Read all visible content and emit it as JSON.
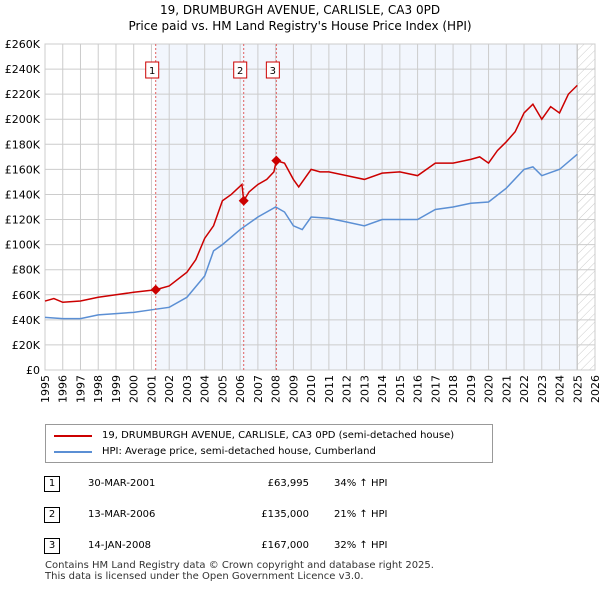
{
  "title_line1": "19, DRUMBURGH AVENUE, CARLISLE, CA3 0PD",
  "title_line2": "Price paid vs. HM Land Registry's House Price Index (HPI)",
  "chart_data": {
    "type": "line",
    "xlim": [
      1995,
      2026
    ],
    "ylim": [
      0,
      260000
    ],
    "x_ticks": [
      "1995",
      "1996",
      "1997",
      "1998",
      "1999",
      "2000",
      "2001",
      "2002",
      "2003",
      "2004",
      "2005",
      "2006",
      "2007",
      "2008",
      "2009",
      "2010",
      "2011",
      "2012",
      "2013",
      "2014",
      "2015",
      "2016",
      "2017",
      "2018",
      "2019",
      "2020",
      "2021",
      "2022",
      "2023",
      "2024",
      "2025",
      "2026"
    ],
    "y_ticks": [
      "£0",
      "£20K",
      "£40K",
      "£60K",
      "£80K",
      "£100K",
      "£120K",
      "£140K",
      "£160K",
      "£180K",
      "£200K",
      "£220K",
      "£240K",
      "£260K"
    ],
    "grid": true,
    "series": [
      {
        "name": "19, DRUMBURGH AVENUE, CARLISLE, CA3 0PD (semi-detached house)",
        "color": "#cc0000",
        "points": [
          [
            1995,
            55000
          ],
          [
            1995.5,
            57000
          ],
          [
            1996,
            54000
          ],
          [
            1997,
            55000
          ],
          [
            1998,
            58000
          ],
          [
            1999,
            60000
          ],
          [
            2000,
            62000
          ],
          [
            2001.24,
            64000
          ],
          [
            2002,
            67000
          ],
          [
            2003,
            78000
          ],
          [
            2003.5,
            88000
          ],
          [
            2004,
            105000
          ],
          [
            2004.5,
            115000
          ],
          [
            2005,
            135000
          ],
          [
            2005.5,
            140000
          ],
          [
            2006.1,
            148000
          ],
          [
            2006.2,
            135000
          ],
          [
            2006.5,
            142000
          ],
          [
            2007,
            148000
          ],
          [
            2007.5,
            152000
          ],
          [
            2007.9,
            158000
          ],
          [
            2008.04,
            167000
          ],
          [
            2008.5,
            165000
          ],
          [
            2009,
            152000
          ],
          [
            2009.3,
            146000
          ],
          [
            2010,
            160000
          ],
          [
            2010.5,
            158000
          ],
          [
            2011,
            158000
          ],
          [
            2012,
            155000
          ],
          [
            2013,
            152000
          ],
          [
            2014,
            157000
          ],
          [
            2015,
            158000
          ],
          [
            2016,
            155000
          ],
          [
            2017,
            165000
          ],
          [
            2018,
            165000
          ],
          [
            2019,
            168000
          ],
          [
            2019.5,
            170000
          ],
          [
            2020,
            165000
          ],
          [
            2020.5,
            175000
          ],
          [
            2021,
            182000
          ],
          [
            2021.5,
            190000
          ],
          [
            2022,
            205000
          ],
          [
            2022.5,
            212000
          ],
          [
            2023,
            200000
          ],
          [
            2023.5,
            210000
          ],
          [
            2024,
            205000
          ],
          [
            2024.5,
            220000
          ],
          [
            2025,
            227000
          ]
        ]
      },
      {
        "name": "HPI: Average price, semi-detached house, Cumberland",
        "color": "#5b8fd4",
        "points": [
          [
            1995,
            42000
          ],
          [
            1996,
            41000
          ],
          [
            1997,
            41000
          ],
          [
            1998,
            44000
          ],
          [
            1999,
            45000
          ],
          [
            2000,
            46000
          ],
          [
            2001,
            48000
          ],
          [
            2002,
            50000
          ],
          [
            2003,
            58000
          ],
          [
            2004,
            75000
          ],
          [
            2004.5,
            95000
          ],
          [
            2005,
            100000
          ],
          [
            2006,
            112000
          ],
          [
            2007,
            122000
          ],
          [
            2008,
            130000
          ],
          [
            2008.5,
            126000
          ],
          [
            2009,
            115000
          ],
          [
            2009.5,
            112000
          ],
          [
            2010,
            122000
          ],
          [
            2011,
            121000
          ],
          [
            2012,
            118000
          ],
          [
            2013,
            115000
          ],
          [
            2014,
            120000
          ],
          [
            2015,
            120000
          ],
          [
            2016,
            120000
          ],
          [
            2017,
            128000
          ],
          [
            2018,
            130000
          ],
          [
            2019,
            133000
          ],
          [
            2020,
            134000
          ],
          [
            2021,
            145000
          ],
          [
            2022,
            160000
          ],
          [
            2022.5,
            162000
          ],
          [
            2023,
            155000
          ],
          [
            2024,
            160000
          ],
          [
            2025,
            172000
          ]
        ]
      }
    ],
    "sales": [
      {
        "label": "1",
        "x": 2001.24,
        "y": 63995
      },
      {
        "label": "2",
        "x": 2006.2,
        "y": 135000
      },
      {
        "label": "3",
        "x": 2008.04,
        "y": 167000
      }
    ],
    "shaded_from": 2001.24,
    "hatched_from": 2025.0
  },
  "legend": {
    "series1": "19, DRUMBURGH AVENUE, CARLISLE, CA3 0PD (semi-detached house)",
    "series2": "HPI: Average price, semi-detached house, Cumberland"
  },
  "transactions": [
    {
      "num": "1",
      "date": "30-MAR-2001",
      "price": "£63,995",
      "hpi": "34% ↑ HPI"
    },
    {
      "num": "2",
      "date": "13-MAR-2006",
      "price": "£135,000",
      "hpi": "21% ↑ HPI"
    },
    {
      "num": "3",
      "date": "14-JAN-2008",
      "price": "£167,000",
      "hpi": "32% ↑ HPI"
    }
  ],
  "footer": {
    "line1": "Contains HM Land Registry data © Crown copyright and database right 2025.",
    "line2": "This data is licensed under the Open Government Licence v3.0."
  }
}
